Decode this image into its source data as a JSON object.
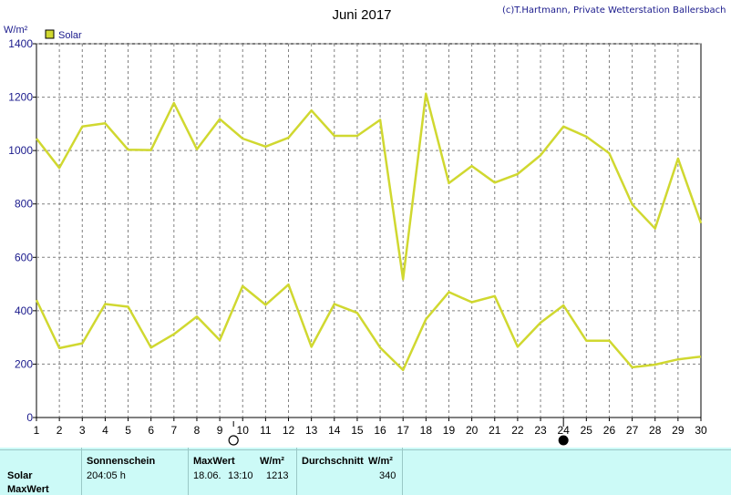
{
  "header": {
    "title": "Juni 2017",
    "credit": "(c)T.Hartmann, Private Wetterstation Ballersbach",
    "unit": "W/m²"
  },
  "chart_data": {
    "type": "line",
    "xlabel": "",
    "ylabel": "W/m²",
    "ylim": [
      0,
      1400
    ],
    "yticks": [
      0,
      200,
      400,
      600,
      800,
      1000,
      1200,
      1400
    ],
    "x": [
      1,
      2,
      3,
      4,
      5,
      6,
      7,
      8,
      9,
      10,
      11,
      12,
      13,
      14,
      15,
      16,
      17,
      18,
      19,
      20,
      21,
      22,
      23,
      24,
      25,
      26,
      27,
      28,
      29,
      30
    ],
    "legend": [
      "Solar"
    ],
    "legend_position": "top-left",
    "grid": true,
    "series": [
      {
        "name": "Solar",
        "line": "max",
        "values": [
          1045,
          935,
          1090,
          1102,
          1003,
          1002,
          1178,
          1005,
          1118,
          1045,
          1015,
          1048,
          1150,
          1055,
          1055,
          1115,
          518,
          1213,
          878,
          942,
          880,
          912,
          982,
          1090,
          1052,
          990,
          798,
          708,
          970,
          728
        ]
      },
      {
        "name": "Solar",
        "line": "average",
        "values": [
          440,
          260,
          278,
          425,
          415,
          262,
          312,
          378,
          290,
          492,
          422,
          498,
          265,
          425,
          392,
          262,
          178,
          368,
          470,
          432,
          455,
          265,
          355,
          420,
          288,
          288,
          188,
          198,
          218,
          228
        ]
      }
    ],
    "colors": {
      "line": "#d0d830",
      "grid": "#808080",
      "axis_text": "#1a1a8c",
      "legend_box": "#d0d830"
    },
    "moon_markers": [
      {
        "day": 9.6,
        "phase": "full",
        "icon": "full-moon-icon"
      },
      {
        "day": 24,
        "phase": "new",
        "icon": "new-moon-icon"
      }
    ]
  },
  "stats": {
    "col_sunshine_label": "Sonnenschein",
    "col_max_label": "MaxWert",
    "col_max_unit": "W/m²",
    "col_avg_label": "Durchschnitt",
    "col_avg_unit": "W/m²",
    "row_solar_label": "Solar",
    "row_max_label": "MaxWert",
    "sunshine_value": "204:05 h",
    "max_date": "18.06.",
    "max_time": "13:10",
    "max_value": "1213",
    "avg_value": "340"
  }
}
